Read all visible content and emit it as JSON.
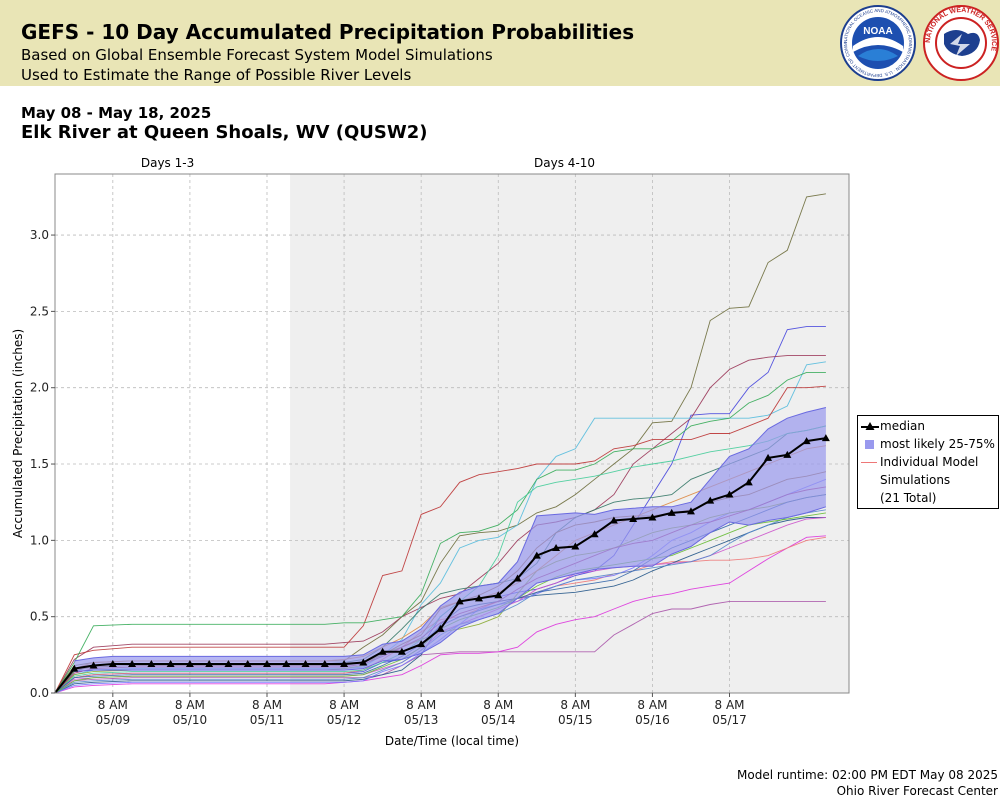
{
  "header": {
    "title": "GEFS - 10 Day Accumulated Precipitation Probabilities",
    "subtitle1": "Based on Global Ensemble Forecast System Model Simulations",
    "subtitle2": "Used to Estimate the Range of Possible River Levels",
    "noaa_logo_text": "NOAA",
    "noaa_ring_text": "NATIONAL OCEANIC AND ATMOSPHERIC ADMINISTRATION · U.S. DEPARTMENT OF COMMERCE",
    "nws_ring_text": "NATIONAL WEATHER SERVICE"
  },
  "date_range": "May 08 - May 18, 2025",
  "station": "Elk River at Queen Shoals, WV (QUSW2)",
  "footer": {
    "runtime": "Model runtime: 02:00 PM EDT May 08 2025",
    "center": "Ohio River Forecast Center"
  },
  "colors": {
    "banner": "#e9e5b6",
    "median": "#000000",
    "band_fill": "#9999ee",
    "band_edge": "#6a6ae0",
    "days_4_10_bg": "#efefef"
  },
  "chart_data": {
    "type": "line",
    "title": "",
    "xlabel": "Date/Time (local time)",
    "ylabel": "Accumulated Precipitation (inches)",
    "ylim": [
      0,
      3.4
    ],
    "yticks": [
      "0.0",
      "0.5",
      "1.0",
      "1.5",
      "2.0",
      "2.5",
      "3.0"
    ],
    "xlim_days": [
      0,
      10.3
    ],
    "x_unit": "days after 02:00 PM May 08 2025",
    "xticks": [
      {
        "day": 0.75,
        "label1": "8 AM",
        "label2": "05/09"
      },
      {
        "day": 1.75,
        "label1": "8 AM",
        "label2": "05/10"
      },
      {
        "day": 2.75,
        "label1": "8 AM",
        "label2": "05/11"
      },
      {
        "day": 3.75,
        "label1": "8 AM",
        "label2": "05/12"
      },
      {
        "day": 4.75,
        "label1": "8 AM",
        "label2": "05/13"
      },
      {
        "day": 5.75,
        "label1": "8 AM",
        "label2": "05/14"
      },
      {
        "day": 6.75,
        "label1": "8 AM",
        "label2": "05/15"
      },
      {
        "day": 7.75,
        "label1": "8 AM",
        "label2": "05/16"
      },
      {
        "day": 8.75,
        "label1": "8 AM",
        "label2": "05/17"
      }
    ],
    "periods": [
      {
        "label": "Days 1-3",
        "start": 0,
        "end": 3.05
      },
      {
        "label": "Days 4-10",
        "start": 3.05,
        "end": 10.3
      }
    ],
    "grid": true,
    "legend_position": "right",
    "legend": {
      "median": "median",
      "band": "most likely 25-75%",
      "individual_line1": "Individual Model",
      "individual_line2": "Simulations",
      "individual_line3": "(21 Total)"
    },
    "median": {
      "x": [
        0,
        0.25,
        0.5,
        0.75,
        1,
        1.25,
        1.5,
        1.75,
        2,
        2.25,
        2.5,
        2.75,
        3,
        3.25,
        3.5,
        3.75,
        4,
        4.25,
        4.5,
        4.75,
        5,
        5.25,
        5.5,
        5.75,
        6,
        6.25,
        6.5,
        6.75,
        7,
        7.25,
        7.5,
        7.75,
        8,
        8.25,
        8.5,
        8.75,
        9,
        9.25,
        9.5,
        9.75,
        10
      ],
      "y": [
        0.0,
        0.16,
        0.18,
        0.19,
        0.19,
        0.19,
        0.19,
        0.19,
        0.19,
        0.19,
        0.19,
        0.19,
        0.19,
        0.19,
        0.19,
        0.19,
        0.2,
        0.27,
        0.27,
        0.32,
        0.42,
        0.6,
        0.62,
        0.64,
        0.75,
        0.9,
        0.95,
        0.96,
        1.04,
        1.13,
        1.14,
        1.15,
        1.18,
        1.19,
        1.26,
        1.3,
        1.38,
        1.54,
        1.56,
        1.65,
        1.67
      ]
    },
    "band_25_75": {
      "x": [
        0.25,
        0.5,
        0.75,
        1,
        1.5,
        2,
        2.5,
        3,
        3.5,
        3.75,
        4,
        4.25,
        4.5,
        4.75,
        5,
        5.25,
        5.5,
        5.75,
        6,
        6.25,
        6.5,
        6.75,
        7,
        7.25,
        7.5,
        7.75,
        8,
        8.25,
        8.5,
        8.75,
        9,
        9.25,
        9.5,
        9.75,
        10
      ],
      "lo": [
        0.14,
        0.15,
        0.15,
        0.15,
        0.15,
        0.15,
        0.15,
        0.15,
        0.15,
        0.15,
        0.16,
        0.21,
        0.22,
        0.26,
        0.33,
        0.43,
        0.48,
        0.52,
        0.62,
        0.72,
        0.75,
        0.78,
        0.81,
        0.82,
        0.83,
        0.83,
        0.91,
        0.96,
        1.05,
        1.12,
        1.1,
        1.13,
        1.15,
        1.18,
        1.22
      ],
      "hi": [
        0.21,
        0.23,
        0.24,
        0.24,
        0.24,
        0.24,
        0.24,
        0.24,
        0.24,
        0.24,
        0.25,
        0.32,
        0.34,
        0.42,
        0.57,
        0.66,
        0.7,
        0.72,
        0.86,
        1.16,
        1.17,
        1.18,
        1.17,
        1.2,
        1.21,
        1.22,
        1.22,
        1.25,
        1.4,
        1.55,
        1.6,
        1.73,
        1.8,
        1.84,
        1.87
      ]
    },
    "members": {
      "x": [
        0,
        0.25,
        0.5,
        1,
        2,
        3,
        3.5,
        3.75,
        4,
        4.25,
        4.5,
        4.75,
        5,
        5.25,
        5.5,
        5.75,
        6,
        6.25,
        6.5,
        6.75,
        7,
        7.25,
        7.5,
        7.75,
        8,
        8.25,
        8.5,
        8.75,
        9,
        9.25,
        9.5,
        9.75,
        10
      ],
      "series": [
        {
          "color": "#6b6b3a",
          "y": [
            0,
            0.18,
            0.2,
            0.21,
            0.21,
            0.21,
            0.21,
            0.21,
            0.3,
            0.38,
            0.5,
            0.6,
            0.85,
            1.03,
            1.05,
            1.06,
            1.1,
            1.18,
            1.22,
            1.3,
            1.4,
            1.5,
            1.6,
            1.77,
            1.78,
            2.0,
            2.44,
            2.52,
            2.53,
            2.82,
            2.9,
            3.25,
            3.27
          ]
        },
        {
          "color": "#4444dd",
          "y": [
            0,
            0.1,
            0.12,
            0.13,
            0.13,
            0.13,
            0.13,
            0.13,
            0.14,
            0.2,
            0.22,
            0.3,
            0.5,
            0.6,
            0.62,
            0.63,
            0.66,
            0.68,
            0.72,
            0.77,
            0.8,
            0.9,
            1.1,
            1.3,
            1.5,
            1.82,
            1.83,
            1.83,
            2.0,
            2.1,
            2.38,
            2.4,
            2.4
          ]
        },
        {
          "color": "#993355",
          "y": [
            0,
            0.22,
            0.3,
            0.32,
            0.32,
            0.32,
            0.32,
            0.33,
            0.34,
            0.4,
            0.5,
            0.56,
            0.62,
            0.65,
            0.75,
            0.85,
            1.0,
            1.1,
            1.12,
            1.15,
            1.2,
            1.3,
            1.5,
            1.6,
            1.7,
            1.8,
            2.0,
            2.12,
            2.18,
            2.2,
            2.21,
            2.21,
            2.21
          ]
        },
        {
          "color": "#55bbdd",
          "y": [
            0,
            0.12,
            0.15,
            0.16,
            0.16,
            0.16,
            0.16,
            0.16,
            0.17,
            0.25,
            0.35,
            0.58,
            0.72,
            0.95,
            1.0,
            1.02,
            1.1,
            1.4,
            1.55,
            1.6,
            1.8,
            1.8,
            1.8,
            1.8,
            1.8,
            1.8,
            1.8,
            1.8,
            1.8,
            1.82,
            1.88,
            2.15,
            2.17
          ]
        },
        {
          "color": "#bb3333",
          "y": [
            0,
            0.25,
            0.28,
            0.3,
            0.3,
            0.3,
            0.3,
            0.3,
            0.44,
            0.77,
            0.8,
            1.17,
            1.22,
            1.38,
            1.43,
            1.45,
            1.47,
            1.5,
            1.5,
            1.5,
            1.52,
            1.6,
            1.62,
            1.66,
            1.66,
            1.66,
            1.7,
            1.7,
            1.75,
            1.8,
            2.0,
            2.0,
            2.01
          ]
        },
        {
          "color": "#33aa55",
          "y": [
            0,
            0.2,
            0.44,
            0.45,
            0.45,
            0.45,
            0.45,
            0.46,
            0.46,
            0.48,
            0.5,
            0.65,
            0.98,
            1.05,
            1.06,
            1.1,
            1.2,
            1.4,
            1.46,
            1.46,
            1.5,
            1.58,
            1.6,
            1.6,
            1.65,
            1.75,
            1.78,
            1.8,
            1.9,
            1.95,
            2.05,
            2.1,
            2.1
          ]
        },
        {
          "color": "#aa55aa",
          "y": [
            0,
            0.08,
            0.09,
            0.1,
            0.1,
            0.1,
            0.1,
            0.1,
            0.1,
            0.12,
            0.18,
            0.25,
            0.26,
            0.27,
            0.27,
            0.27,
            0.27,
            0.27,
            0.27,
            0.27,
            0.27,
            0.38,
            0.45,
            0.52,
            0.55,
            0.55,
            0.58,
            0.6,
            0.6,
            0.6,
            0.6,
            0.6,
            0.6
          ]
        },
        {
          "color": "#dd33dd",
          "y": [
            0,
            0.04,
            0.05,
            0.06,
            0.06,
            0.06,
            0.06,
            0.07,
            0.08,
            0.1,
            0.12,
            0.18,
            0.25,
            0.26,
            0.26,
            0.27,
            0.3,
            0.4,
            0.45,
            0.48,
            0.5,
            0.55,
            0.6,
            0.63,
            0.65,
            0.68,
            0.7,
            0.72,
            0.8,
            0.88,
            0.95,
            1.02,
            1.03
          ]
        },
        {
          "color": "#ee7777",
          "y": [
            0,
            0.1,
            0.12,
            0.13,
            0.13,
            0.13,
            0.13,
            0.13,
            0.15,
            0.22,
            0.3,
            0.4,
            0.48,
            0.5,
            0.55,
            0.6,
            0.62,
            0.66,
            0.7,
            0.72,
            0.74,
            0.78,
            0.8,
            0.84,
            0.86,
            0.86,
            0.87,
            0.87,
            0.88,
            0.9,
            0.95,
            1.0,
            1.02
          ]
        },
        {
          "color": "#225588",
          "y": [
            0,
            0.06,
            0.07,
            0.08,
            0.08,
            0.08,
            0.08,
            0.08,
            0.09,
            0.12,
            0.15,
            0.25,
            0.45,
            0.55,
            0.58,
            0.6,
            0.62,
            0.64,
            0.65,
            0.66,
            0.68,
            0.7,
            0.74,
            0.8,
            0.85,
            0.9,
            0.95,
            1.0,
            1.05,
            1.1,
            1.13,
            1.15,
            1.15
          ]
        },
        {
          "color": "#7777ff",
          "y": [
            0,
            0.05,
            0.06,
            0.07,
            0.07,
            0.07,
            0.07,
            0.07,
            0.08,
            0.14,
            0.18,
            0.26,
            0.35,
            0.45,
            0.55,
            0.58,
            0.6,
            0.65,
            0.7,
            0.74,
            0.75,
            0.77,
            0.82,
            0.9,
            1.0,
            1.05,
            1.12,
            1.18,
            1.2,
            1.25,
            1.3,
            1.35,
            1.4
          ]
        },
        {
          "color": "#88aa33",
          "y": [
            0,
            0.12,
            0.14,
            0.15,
            0.15,
            0.15,
            0.15,
            0.16,
            0.18,
            0.26,
            0.3,
            0.35,
            0.4,
            0.42,
            0.45,
            0.5,
            0.65,
            0.8,
            0.86,
            0.9,
            0.92,
            0.95,
            1.0,
            1.05,
            1.08,
            1.1,
            1.15,
            1.18,
            1.2,
            1.22,
            1.25,
            1.28,
            1.3
          ]
        },
        {
          "color": "#337766",
          "y": [
            0,
            0.14,
            0.18,
            0.19,
            0.19,
            0.19,
            0.19,
            0.2,
            0.22,
            0.3,
            0.42,
            0.55,
            0.65,
            0.68,
            0.7,
            0.72,
            0.75,
            0.85,
            1.05,
            1.15,
            1.2,
            1.25,
            1.27,
            1.28,
            1.3,
            1.4,
            1.45,
            1.5,
            1.55,
            1.6,
            1.7,
            1.72,
            1.75
          ]
        },
        {
          "color": "#cc55cc",
          "y": [
            0,
            0.09,
            0.1,
            0.11,
            0.11,
            0.11,
            0.11,
            0.11,
            0.12,
            0.16,
            0.2,
            0.28,
            0.4,
            0.45,
            0.5,
            0.55,
            0.6,
            0.68,
            0.72,
            0.78,
            0.8,
            0.82,
            0.83,
            0.84,
            0.85,
            0.86,
            0.9,
            0.95,
            1.0,
            1.05,
            1.1,
            1.14,
            1.15
          ]
        },
        {
          "color": "#996633",
          "y": [
            0,
            0.15,
            0.17,
            0.18,
            0.18,
            0.18,
            0.18,
            0.18,
            0.2,
            0.25,
            0.32,
            0.38,
            0.55,
            0.6,
            0.64,
            0.7,
            0.8,
            0.95,
            1.05,
            1.1,
            1.12,
            1.15,
            1.16,
            1.16,
            1.18,
            1.2,
            1.25,
            1.28,
            1.3,
            1.35,
            1.4,
            1.42,
            1.45
          ]
        },
        {
          "color": "#5588cc",
          "y": [
            0,
            0.07,
            0.08,
            0.09,
            0.09,
            0.09,
            0.09,
            0.09,
            0.1,
            0.15,
            0.2,
            0.28,
            0.38,
            0.45,
            0.48,
            0.52,
            0.58,
            0.66,
            0.7,
            0.74,
            0.76,
            0.78,
            0.8,
            0.82,
            0.84,
            0.86,
            0.9,
            0.98,
            1.05,
            1.1,
            1.15,
            1.18,
            1.2
          ]
        },
        {
          "color": "#44cc99",
          "y": [
            0,
            0.11,
            0.13,
            0.14,
            0.14,
            0.14,
            0.14,
            0.14,
            0.15,
            0.2,
            0.26,
            0.35,
            0.5,
            0.6,
            0.7,
            0.9,
            1.25,
            1.35,
            1.38,
            1.4,
            1.42,
            1.45,
            1.48,
            1.5,
            1.52,
            1.55,
            1.58,
            1.6,
            1.62,
            1.65,
            1.7,
            1.72,
            1.75
          ]
        },
        {
          "color": "#aa3377",
          "y": [
            0,
            0.13,
            0.16,
            0.17,
            0.17,
            0.17,
            0.17,
            0.17,
            0.19,
            0.24,
            0.3,
            0.36,
            0.46,
            0.52,
            0.56,
            0.6,
            0.68,
            0.75,
            0.8,
            0.85,
            0.9,
            0.95,
            0.98,
            1.0,
            1.05,
            1.1,
            1.12,
            1.16,
            1.2,
            1.25,
            1.3,
            1.33,
            1.35
          ]
        },
        {
          "color": "#3366aa",
          "y": [
            0,
            0.1,
            0.11,
            0.12,
            0.12,
            0.12,
            0.12,
            0.12,
            0.13,
            0.18,
            0.24,
            0.32,
            0.44,
            0.5,
            0.54,
            0.58,
            0.62,
            0.66,
            0.68,
            0.7,
            0.72,
            0.74,
            0.8,
            0.88,
            0.95,
            1.0,
            1.05,
            1.1,
            1.15,
            1.2,
            1.25,
            1.28,
            1.3
          ]
        },
        {
          "color": "#dd8844",
          "y": [
            0,
            0.16,
            0.2,
            0.21,
            0.21,
            0.21,
            0.21,
            0.22,
            0.24,
            0.3,
            0.36,
            0.44,
            0.56,
            0.6,
            0.62,
            0.66,
            0.72,
            0.8,
            0.9,
            1.0,
            1.05,
            1.1,
            1.15,
            1.2,
            1.25,
            1.3,
            1.35,
            1.4,
            1.45,
            1.5,
            1.55,
            1.6,
            1.62
          ]
        },
        {
          "color": "#66bb33",
          "y": [
            0,
            0.08,
            0.1,
            0.11,
            0.11,
            0.11,
            0.11,
            0.11,
            0.12,
            0.17,
            0.22,
            0.3,
            0.42,
            0.48,
            0.52,
            0.56,
            0.62,
            0.7,
            0.76,
            0.8,
            0.82,
            0.84,
            0.86,
            0.88,
            0.9,
            0.95,
            1.0,
            1.05,
            1.1,
            1.12,
            1.14,
            1.16,
            1.18
          ]
        }
      ]
    }
  }
}
